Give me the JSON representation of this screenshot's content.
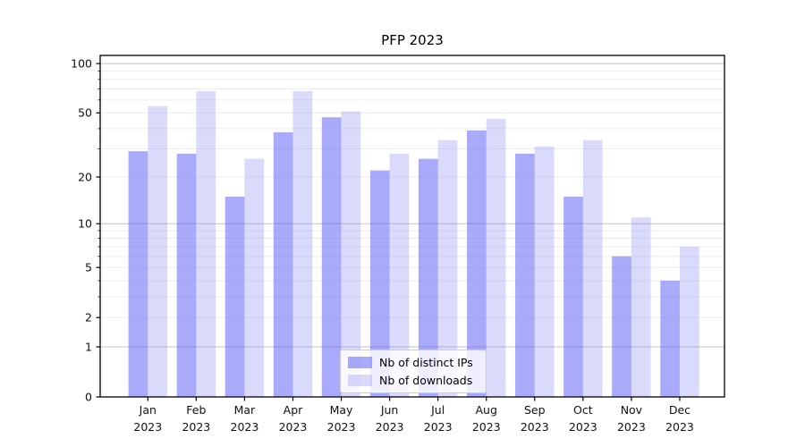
{
  "chart_data": {
    "type": "bar",
    "title": "PFP 2023",
    "categories": [
      "Jan 2023",
      "Feb 2023",
      "Mar 2023",
      "Apr 2023",
      "May 2023",
      "Jun 2023",
      "Jul 2023",
      "Aug 2023",
      "Sep 2023",
      "Oct 2023",
      "Nov 2023",
      "Dec 2023"
    ],
    "series": [
      {
        "name": "Nb of distinct IPs",
        "color": "rgba(85,85,245,0.5)",
        "values": [
          29,
          28,
          15,
          38,
          47,
          22,
          26,
          39,
          28,
          15,
          6,
          4
        ]
      },
      {
        "name": "Nb of downloads",
        "color": "rgba(132,132,238,0.3)",
        "values": [
          55,
          68,
          26,
          68,
          51,
          28,
          34,
          46,
          31,
          34,
          11,
          7
        ]
      }
    ],
    "xlabel": "",
    "ylabel": "",
    "yscale": "log1p",
    "ylim": [
      0,
      112
    ],
    "y_ticks": [
      0,
      1,
      2,
      5,
      10,
      20,
      50,
      100
    ],
    "grid": "on",
    "grid_major_values": [
      1,
      10,
      100
    ],
    "grid_minor_values": [
      2,
      3,
      4,
      5,
      6,
      7,
      8,
      9,
      20,
      30,
      40,
      50,
      60,
      70,
      80,
      90
    ],
    "legend_position": "lower center inside",
    "axis_color": "#000000",
    "grid_major_color": "#c3c3c3",
    "grid_minor_color": "#ececec",
    "tick_label_color": "#111111"
  }
}
